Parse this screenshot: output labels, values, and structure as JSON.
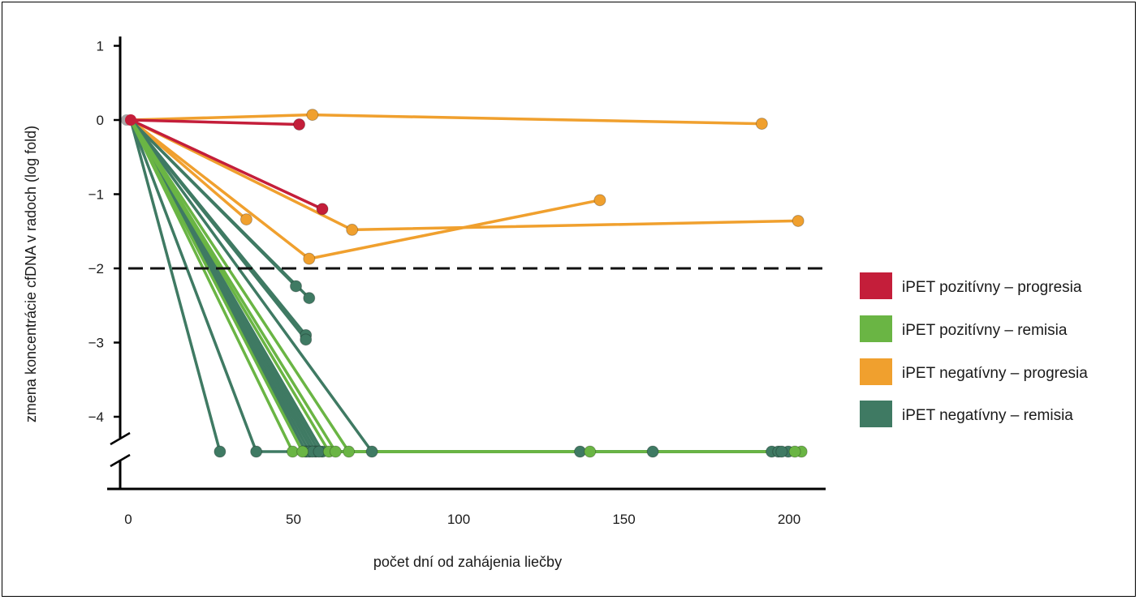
{
  "chart_data": {
    "type": "line",
    "xlabel": "počet dní od zahájenia liečby",
    "ylabel": "zmena koncentrácie cfDNA v radoch (log fold)",
    "x_ticks": [
      "0",
      "50",
      "100",
      "150",
      "200"
    ],
    "x_tick_values": [
      0,
      50,
      100,
      150,
      200
    ],
    "y_ticks": [
      "1",
      "0",
      "−1",
      "−2",
      "−3",
      "−4"
    ],
    "y_tick_values": [
      1,
      0,
      -1,
      -2,
      -3,
      -4
    ],
    "xlim": [
      -3,
      210
    ],
    "ylim": [
      -4.9,
      1.1
    ],
    "y_axis_break": true,
    "floor_value": -4.5,
    "threshold_line": -2,
    "grid": false,
    "legend_position": "right",
    "legend": [
      {
        "label": "iPET pozitívny – progresia",
        "color": "#c41e3a"
      },
      {
        "label": "iPET pozitívny – remisia",
        "color": "#6ab544"
      },
      {
        "label": "iPET negatívny – progresia",
        "color": "#f0a02e"
      },
      {
        "label": "iPET negatívny – remisia",
        "color": "#3f7a63"
      }
    ],
    "series": [
      {
        "group": 2,
        "points": [
          [
            0,
            0
          ],
          [
            55,
            0.07
          ],
          [
            191,
            -0.05
          ]
        ]
      },
      {
        "group": 2,
        "points": [
          [
            0,
            0
          ],
          [
            67,
            -1.48
          ],
          [
            202,
            -1.36
          ]
        ]
      },
      {
        "group": 2,
        "points": [
          [
            0,
            0
          ],
          [
            54,
            -1.87
          ],
          [
            142,
            -1.08
          ]
        ]
      },
      {
        "group": 2,
        "points": [
          [
            0,
            0
          ],
          [
            35,
            -1.34
          ]
        ]
      },
      {
        "group": 0,
        "points": [
          [
            0,
            0
          ],
          [
            51,
            -0.06
          ]
        ]
      },
      {
        "group": 0,
        "points": [
          [
            0,
            0
          ],
          [
            58,
            -1.2
          ]
        ]
      },
      {
        "group": 3,
        "points": [
          [
            0,
            0
          ],
          [
            50,
            -2.24
          ]
        ]
      },
      {
        "group": 3,
        "points": [
          [
            0,
            0
          ],
          [
            54,
            -2.4
          ]
        ]
      },
      {
        "group": 3,
        "points": [
          [
            0,
            0
          ],
          [
            53,
            -2.9
          ]
        ]
      },
      {
        "group": 3,
        "points": [
          [
            0,
            0
          ],
          [
            53,
            -2.96
          ]
        ]
      },
      {
        "group": 3,
        "points": [
          [
            0,
            0
          ],
          [
            27,
            -4.5
          ]
        ]
      },
      {
        "group": 3,
        "points": [
          [
            0,
            0
          ],
          [
            38,
            -4.5
          ],
          [
            136,
            -4.5
          ]
        ]
      },
      {
        "group": 3,
        "points": [
          [
            0,
            0
          ],
          [
            53,
            -4.5
          ],
          [
            194,
            -4.5
          ]
        ]
      },
      {
        "group": 3,
        "points": [
          [
            0,
            0
          ],
          [
            54,
            -4.5
          ],
          [
            196,
            -4.5
          ]
        ]
      },
      {
        "group": 3,
        "points": [
          [
            0,
            0
          ],
          [
            56,
            -4.5
          ],
          [
            158,
            -4.5
          ]
        ]
      },
      {
        "group": 3,
        "points": [
          [
            0,
            0
          ],
          [
            58,
            -4.5
          ],
          [
            199,
            -4.5
          ]
        ]
      },
      {
        "group": 3,
        "points": [
          [
            0,
            0
          ],
          [
            73,
            -4.5
          ],
          [
            197,
            -4.5
          ]
        ]
      },
      {
        "group": 3,
        "points": [
          [
            0,
            0
          ],
          [
            55,
            -4.5
          ]
        ]
      },
      {
        "group": 3,
        "points": [
          [
            0,
            0
          ],
          [
            57,
            -4.5
          ]
        ]
      },
      {
        "group": 1,
        "points": [
          [
            0,
            0
          ],
          [
            49,
            -4.5
          ],
          [
            139,
            -4.5
          ]
        ]
      },
      {
        "group": 1,
        "points": [
          [
            0,
            0
          ],
          [
            60,
            -4.5
          ],
          [
            203,
            -4.5
          ]
        ]
      },
      {
        "group": 1,
        "points": [
          [
            0,
            0
          ],
          [
            66,
            -4.5
          ],
          [
            201,
            -4.5
          ]
        ]
      },
      {
        "group": 1,
        "points": [
          [
            0,
            0
          ],
          [
            52,
            -4.5
          ]
        ]
      },
      {
        "group": 1,
        "points": [
          [
            0,
            0
          ],
          [
            62,
            -4.5
          ]
        ]
      }
    ]
  }
}
